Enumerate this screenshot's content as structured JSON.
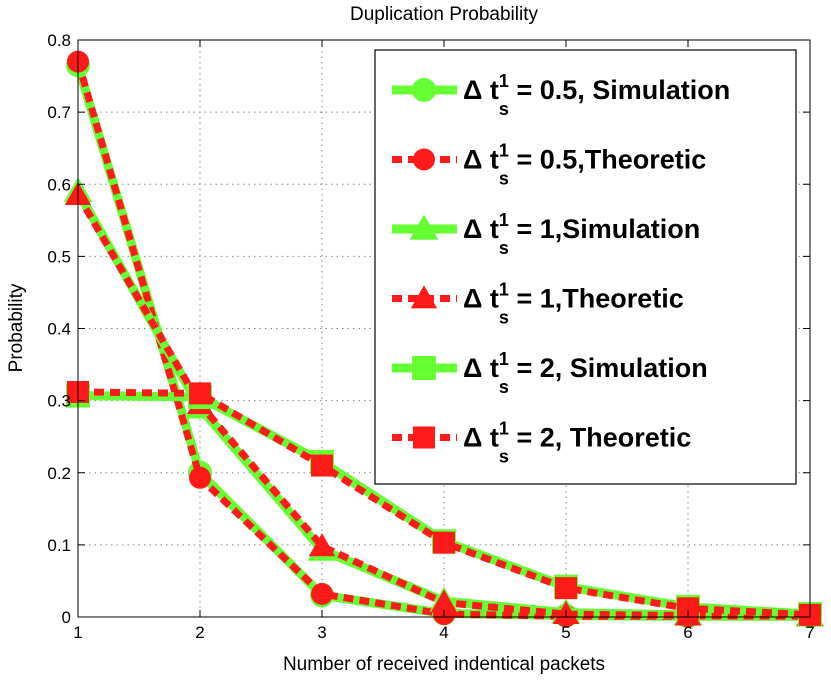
{
  "chart_data": {
    "type": "line",
    "title": "Duplication Probability",
    "xlabel": "Number of received indentical packets",
    "ylabel": "Probability",
    "xlim": [
      1,
      7
    ],
    "ylim": [
      0,
      0.8
    ],
    "x": [
      1,
      2,
      3,
      4,
      5,
      6,
      7
    ],
    "xticks": [
      "1",
      "2",
      "3",
      "4",
      "5",
      "6",
      "7"
    ],
    "yticks": [
      "0",
      "0.1",
      "0.2",
      "0.3",
      "0.4",
      "0.5",
      "0.6",
      "0.7",
      "0.8"
    ],
    "grid": true,
    "legend_position": "top-right",
    "colors": {
      "simulation": "#66ff33",
      "theoretic": "#ff1a1a"
    },
    "series": [
      {
        "name": "Δ t_s^1 = 0.5, Simulation",
        "marker": "circle",
        "style": "simulation",
        "values": [
          0.765,
          0.2,
          0.03,
          0.005,
          0.002,
          0.001,
          0.001
        ]
      },
      {
        "name": "Δ t_s^1 = 0.5,Theoretic",
        "marker": "circle",
        "style": "theoretic",
        "values": [
          0.77,
          0.193,
          0.032,
          0.004,
          0.001,
          0.001,
          0.001
        ]
      },
      {
        "name": "Δ t_s^1 = 1,Simulation",
        "marker": "triangle",
        "style": "simulation",
        "values": [
          0.59,
          0.29,
          0.093,
          0.022,
          0.006,
          0.003,
          0.002
        ]
      },
      {
        "name": "Δ t_s^1 = 1,Theoretic",
        "marker": "triangle",
        "style": "theoretic",
        "values": [
          0.585,
          0.295,
          0.098,
          0.02,
          0.004,
          0.002,
          0.001
        ]
      },
      {
        "name": "Δ t_s^1 = 2, Simulation",
        "marker": "square",
        "style": "simulation",
        "values": [
          0.307,
          0.305,
          0.215,
          0.105,
          0.042,
          0.014,
          0.004
        ]
      },
      {
        "name": "Δ t_s^1 = 2, Theoretic",
        "marker": "square",
        "style": "theoretic",
        "values": [
          0.312,
          0.31,
          0.21,
          0.103,
          0.04,
          0.012,
          0.003
        ]
      }
    ],
    "legend": [
      {
        "main": "Δ t",
        "sup": "1",
        "sub": "s",
        "rest": " = 0.5, Simulation"
      },
      {
        "main": "Δ t",
        "sup": "1",
        "sub": "s",
        "rest": " = 0.5,Theoretic"
      },
      {
        "main": "Δ t",
        "sup": "1",
        "sub": "s",
        "rest": " = 1,Simulation"
      },
      {
        "main": "Δ t",
        "sup": "1",
        "sub": "s",
        "rest": " = 1,Theoretic"
      },
      {
        "main": "Δ t",
        "sup": "1",
        "sub": "s",
        "rest": " = 2, Simulation"
      },
      {
        "main": "Δ t",
        "sup": "1",
        "sub": "s",
        "rest": " = 2, Theoretic"
      }
    ]
  }
}
